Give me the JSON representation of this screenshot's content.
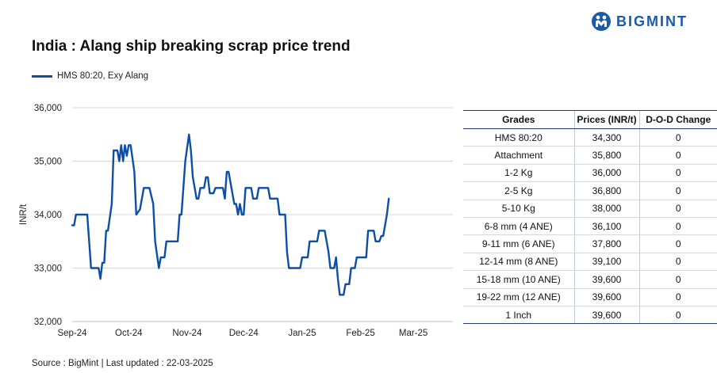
{
  "header": {
    "title": "India : Alang ship breaking scrap price trend",
    "logo_text": "BIGMINT",
    "source": "Source : BigMint | Last updated : 22-03-2025"
  },
  "colors": {
    "line": "#0d4ea6",
    "brand": "#1b5aa6",
    "border": "#1f3c74"
  },
  "chart_data": {
    "type": "line",
    "title": "India : Alang ship breaking scrap price trend",
    "xlabel": "",
    "ylabel": "INR/t",
    "ylim": [
      32000,
      36000
    ],
    "yticks": [
      32000,
      33000,
      34000,
      35000,
      36000
    ],
    "ytick_labels": [
      "32,000",
      "33,000",
      "34,000",
      "35,000",
      "36,000"
    ],
    "xlim": [
      "2024-09-01",
      "2025-03-22"
    ],
    "xticks": [
      {
        "label": "Sep-24",
        "date": "2024-09-01"
      },
      {
        "label": "Oct-24",
        "date": "2024-10-01"
      },
      {
        "label": "Nov-24",
        "date": "2024-11-01"
      },
      {
        "label": "Dec-24",
        "date": "2024-12-01"
      },
      {
        "label": "Jan-25",
        "date": "2025-01-01"
      },
      {
        "label": "Feb-25",
        "date": "2025-02-01"
      },
      {
        "label": "Mar-25",
        "date": "2025-03-01"
      }
    ],
    "grid": "horizontal",
    "legend_position": "top-left",
    "series": [
      {
        "name": "HMS 80:20, Exy Alang",
        "points": [
          [
            "2024-09-01",
            33800
          ],
          [
            "2024-09-02",
            33800
          ],
          [
            "2024-09-03",
            34000
          ],
          [
            "2024-09-09",
            34000
          ],
          [
            "2024-09-10",
            33500
          ],
          [
            "2024-09-11",
            33000
          ],
          [
            "2024-09-15",
            33000
          ],
          [
            "2024-09-16",
            32800
          ],
          [
            "2024-09-17",
            33100
          ],
          [
            "2024-09-18",
            33100
          ],
          [
            "2024-09-19",
            33700
          ],
          [
            "2024-09-20",
            33700
          ],
          [
            "2024-09-22",
            34200
          ],
          [
            "2024-09-23",
            35200
          ],
          [
            "2024-09-25",
            35200
          ],
          [
            "2024-09-26",
            35000
          ],
          [
            "2024-09-27",
            35300
          ],
          [
            "2024-09-28",
            35000
          ],
          [
            "2024-09-29",
            35300
          ],
          [
            "2024-09-30",
            35100
          ],
          [
            "2024-10-01",
            35300
          ],
          [
            "2024-10-02",
            35300
          ],
          [
            "2024-10-04",
            34800
          ],
          [
            "2024-10-05",
            34000
          ],
          [
            "2024-10-07",
            34100
          ],
          [
            "2024-10-09",
            34500
          ],
          [
            "2024-10-12",
            34500
          ],
          [
            "2024-10-14",
            34200
          ],
          [
            "2024-10-15",
            33500
          ],
          [
            "2024-10-17",
            33000
          ],
          [
            "2024-10-18",
            33200
          ],
          [
            "2024-10-20",
            33200
          ],
          [
            "2024-10-21",
            33500
          ],
          [
            "2024-10-27",
            33500
          ],
          [
            "2024-10-28",
            34000
          ],
          [
            "2024-10-29",
            34000
          ],
          [
            "2024-10-30",
            34500
          ],
          [
            "2024-10-31",
            35000
          ],
          [
            "2024-11-02",
            35500
          ],
          [
            "2024-11-03",
            35200
          ],
          [
            "2024-11-04",
            34700
          ],
          [
            "2024-11-05",
            34500
          ],
          [
            "2024-11-06",
            34300
          ],
          [
            "2024-11-07",
            34300
          ],
          [
            "2024-11-08",
            34500
          ],
          [
            "2024-11-10",
            34500
          ],
          [
            "2024-11-11",
            34700
          ],
          [
            "2024-11-12",
            34700
          ],
          [
            "2024-11-13",
            34400
          ],
          [
            "2024-11-15",
            34400
          ],
          [
            "2024-11-16",
            34500
          ],
          [
            "2024-11-20",
            34500
          ],
          [
            "2024-11-21",
            34300
          ],
          [
            "2024-11-22",
            34800
          ],
          [
            "2024-11-23",
            34800
          ],
          [
            "2024-11-24",
            34600
          ],
          [
            "2024-11-26",
            34200
          ],
          [
            "2024-11-27",
            34200
          ],
          [
            "2024-11-28",
            34000
          ],
          [
            "2024-11-29",
            34200
          ],
          [
            "2024-11-30",
            34000
          ],
          [
            "2024-12-01",
            34000
          ],
          [
            "2024-12-02",
            34500
          ],
          [
            "2024-12-05",
            34500
          ],
          [
            "2024-12-06",
            34300
          ],
          [
            "2024-12-08",
            34300
          ],
          [
            "2024-12-09",
            34500
          ],
          [
            "2024-12-14",
            34500
          ],
          [
            "2024-12-15",
            34300
          ],
          [
            "2024-12-19",
            34300
          ],
          [
            "2024-12-20",
            34000
          ],
          [
            "2024-12-23",
            34000
          ],
          [
            "2024-12-24",
            33300
          ],
          [
            "2024-12-25",
            33000
          ],
          [
            "2024-12-31",
            33000
          ],
          [
            "2025-01-01",
            33200
          ],
          [
            "2025-01-04",
            33200
          ],
          [
            "2025-01-05",
            33500
          ],
          [
            "2025-01-09",
            33500
          ],
          [
            "2025-01-10",
            33700
          ],
          [
            "2025-01-13",
            33700
          ],
          [
            "2025-01-14",
            33500
          ],
          [
            "2025-01-15",
            33300
          ],
          [
            "2025-01-16",
            33000
          ],
          [
            "2025-01-18",
            33000
          ],
          [
            "2025-01-19",
            33200
          ],
          [
            "2025-01-20",
            32800
          ],
          [
            "2025-01-21",
            32500
          ],
          [
            "2025-01-23",
            32500
          ],
          [
            "2025-01-24",
            32700
          ],
          [
            "2025-01-26",
            32700
          ],
          [
            "2025-01-27",
            33000
          ],
          [
            "2025-01-29",
            33000
          ],
          [
            "2025-01-30",
            33200
          ],
          [
            "2025-02-04",
            33200
          ],
          [
            "2025-02-05",
            33700
          ],
          [
            "2025-02-08",
            33700
          ],
          [
            "2025-02-09",
            33500
          ],
          [
            "2025-02-11",
            33500
          ],
          [
            "2025-02-12",
            33600
          ],
          [
            "2025-02-13",
            33600
          ],
          [
            "2025-02-14",
            33800
          ],
          [
            "2025-02-15",
            34000
          ],
          [
            "2025-02-16",
            34300
          ]
        ]
      }
    ]
  },
  "table": {
    "headers": [
      "Grades",
      "Prices (INR/t)",
      "D-O-D Change"
    ],
    "rows": [
      [
        "HMS 80:20",
        "34,300",
        "0"
      ],
      [
        "Attachment",
        "35,800",
        "0"
      ],
      [
        "1-2 Kg",
        "36,000",
        "0"
      ],
      [
        "2-5 Kg",
        "36,800",
        "0"
      ],
      [
        "5-10 Kg",
        "38,000",
        "0"
      ],
      [
        "6-8 mm (4 ANE)",
        "36,100",
        "0"
      ],
      [
        "9-11 mm (6 ANE)",
        "37,800",
        "0"
      ],
      [
        "12-14 mm (8 ANE)",
        "39,100",
        "0"
      ],
      [
        "15-18 mm (10 ANE)",
        "39,600",
        "0"
      ],
      [
        "19-22 mm (12 ANE)",
        "39,600",
        "0"
      ],
      [
        "1 Inch",
        "39,600",
        "0"
      ]
    ]
  }
}
